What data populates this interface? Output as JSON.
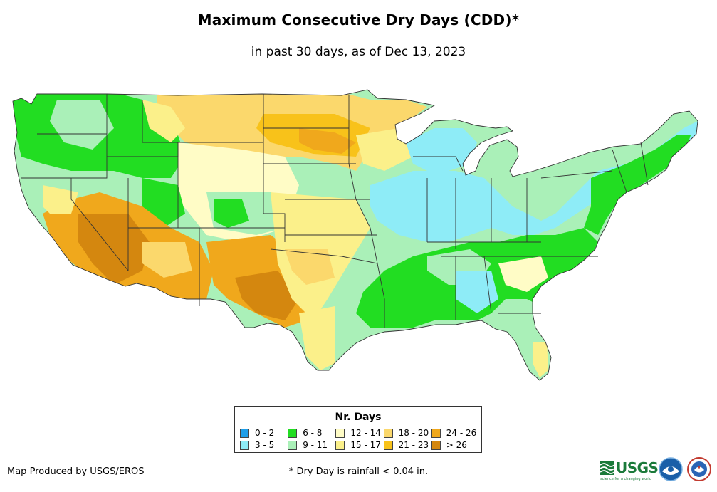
{
  "title": "Maximum Consecutive Dry Days (CDD)*",
  "subtitle": "in past 30 days, as of Dec 13, 2023",
  "legend": {
    "title": "Nr. Days",
    "items": [
      {
        "label": "0 - 2",
        "color": "#1f9ee8"
      },
      {
        "label": "12 - 14",
        "color": "#fffcc6"
      },
      {
        "label": "24 - 26",
        "color": "#f0a81c"
      },
      {
        "label": "3 - 5",
        "color": "#8eecf7"
      },
      {
        "label": "6 - 8",
        "color": "#22dd22"
      },
      {
        "label": "18 - 20",
        "color": "#fbd86c"
      },
      {
        "label": "> 26",
        "color": "#d4870f"
      },
      {
        "label": "9 - 11",
        "color": "#aaf0b8"
      },
      {
        "label": "15 - 17",
        "color": "#fbf08a"
      },
      {
        "label": "21 - 23",
        "color": "#f8c21a"
      }
    ]
  },
  "footer": {
    "producer": "Map Produced by USGS/EROS",
    "note": "* Dry Day is rainfall < 0.04 in."
  },
  "logos": {
    "usgs": "USGS",
    "usgs_tagline": "science for a changing world"
  },
  "colors": {
    "cdd_0_2": "#1f9ee8",
    "cdd_3_5": "#8eecf7",
    "cdd_6_8": "#22dd22",
    "cdd_9_11": "#aaf0b8",
    "cdd_12_14": "#fffcc6",
    "cdd_15_17": "#fbf08a",
    "cdd_18_20": "#fbd86c",
    "cdd_21_23": "#f8c21a",
    "cdd_24_26": "#f0a81c",
    "cdd_gt_26": "#d4870f"
  }
}
